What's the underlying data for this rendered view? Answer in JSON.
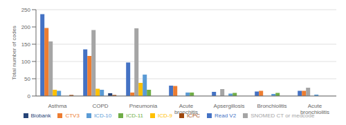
{
  "chart_data": {
    "type": "bar",
    "categories": [
      "Asthma",
      "COPD",
      "Pneumonia",
      "Acute\nbronchitis",
      "Apsergillosis",
      "Bronchiolitis",
      "Acute\nbronchiolitis"
    ],
    "series": [
      {
        "name": "Read V2",
        "color": "#4472C4",
        "values": [
          237,
          135,
          97,
          30,
          12,
          13,
          15
        ]
      },
      {
        "name": "CTV3",
        "color": "#ED7D31",
        "values": [
          197,
          116,
          10,
          29,
          0,
          15,
          15
        ]
      },
      {
        "name": "SNOMED CT or medcode",
        "color": "#A5A5A5",
        "values": [
          158,
          191,
          196,
          0,
          20,
          0,
          24
        ]
      },
      {
        "name": "ICD-9",
        "color": "#FFC000",
        "values": [
          18,
          21,
          38,
          0,
          0,
          0,
          0
        ]
      },
      {
        "name": "ICD-10",
        "color": "#5B9BD5",
        "values": [
          15,
          18,
          62,
          10,
          7,
          6,
          4
        ]
      },
      {
        "name": "ICD-11",
        "color": "#70AD47",
        "values": [
          0,
          0,
          18,
          10,
          9,
          9,
          0
        ]
      },
      {
        "name": "Biobank",
        "color": "#264478",
        "values": [
          0,
          8,
          0,
          0,
          0,
          0,
          0
        ]
      },
      {
        "name": "ICPC",
        "color": "#9E480E",
        "values": [
          3,
          3,
          0,
          0,
          0,
          0,
          0
        ]
      }
    ],
    "ylabel": "Total number of codes",
    "ylim": [
      0,
      250
    ],
    "yticks": [
      0,
      50,
      100,
      150,
      200,
      250
    ],
    "grid": true,
    "legend": "bottom"
  }
}
